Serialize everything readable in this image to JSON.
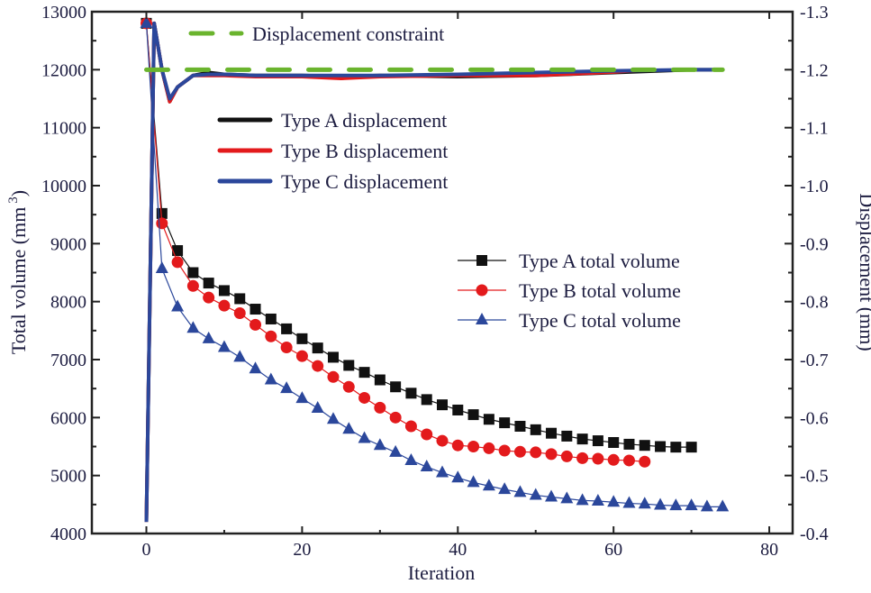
{
  "chart_data": {
    "type": "line",
    "xlabel": "Iteration",
    "ylabel_left": "Total volume (mm",
    "ylabel_left_sup": "3",
    "ylabel_left_close": ")",
    "ylabel_right": "Displacement (mm)",
    "xlim": [
      -7,
      83
    ],
    "ylim_left": [
      4000,
      13000
    ],
    "ylim_right": [
      -0.4,
      -1.3
    ],
    "xticks": [
      0,
      20,
      40,
      60,
      80
    ],
    "yticks_left": [
      4000,
      5000,
      6000,
      7000,
      8000,
      9000,
      10000,
      11000,
      12000,
      13000
    ],
    "yticks_right": [
      "-0.4",
      "-0.5",
      "-0.6",
      "-0.7",
      "-0.8",
      "-0.9",
      "-1.0",
      "-1.1",
      "-1.2",
      "-1.3"
    ],
    "grid": false,
    "constraint": {
      "name": "Displacement constraint",
      "value": -1.2,
      "color": "#6ab42d",
      "x": [
        0,
        74
      ]
    },
    "displacement_series": [
      {
        "name": "Type A displacement",
        "color": "#111111",
        "x": [
          0,
          1,
          2,
          3,
          4,
          6,
          8,
          10,
          14,
          20,
          25,
          30,
          40,
          50,
          60,
          70,
          74
        ],
        "y": [
          -0.42,
          -1.28,
          -1.2,
          -1.145,
          -1.17,
          -1.19,
          -1.195,
          -1.192,
          -1.19,
          -1.19,
          -1.188,
          -1.19,
          -1.188,
          -1.19,
          -1.195,
          -1.2,
          -1.2
        ]
      },
      {
        "name": "Type B displacement",
        "color": "#e31a1c",
        "x": [
          0,
          1,
          2,
          3,
          4,
          6,
          8,
          10,
          14,
          20,
          25,
          30,
          40,
          50,
          60,
          64
        ],
        "y": [
          -0.42,
          -1.28,
          -1.2,
          -1.145,
          -1.17,
          -1.19,
          -1.19,
          -1.19,
          -1.188,
          -1.188,
          -1.185,
          -1.188,
          -1.19,
          -1.19,
          -1.196,
          -1.2
        ]
      },
      {
        "name": "Type C displacement",
        "color": "#2b479b",
        "x": [
          0,
          1,
          2,
          3,
          4,
          6,
          8,
          10,
          14,
          20,
          30,
          40,
          50,
          60,
          70,
          74
        ],
        "y": [
          -0.42,
          -1.28,
          -1.2,
          -1.15,
          -1.17,
          -1.19,
          -1.192,
          -1.192,
          -1.19,
          -1.19,
          -1.19,
          -1.192,
          -1.195,
          -1.198,
          -1.2,
          -1.2
        ]
      }
    ],
    "volume_series": [
      {
        "name": "Type A total volume",
        "color": "#111111",
        "marker": "square",
        "x": [
          0,
          2,
          4,
          6,
          8,
          10,
          12,
          14,
          16,
          18,
          20,
          22,
          24,
          26,
          28,
          30,
          32,
          34,
          36,
          38,
          40,
          42,
          44,
          46,
          48,
          50,
          52,
          54,
          56,
          58,
          60,
          62,
          64,
          66,
          68,
          70
        ],
        "y": [
          12800,
          9520,
          8880,
          8500,
          8320,
          8190,
          8050,
          7870,
          7700,
          7530,
          7360,
          7200,
          7040,
          6900,
          6780,
          6650,
          6530,
          6420,
          6310,
          6220,
          6130,
          6050,
          5970,
          5910,
          5850,
          5790,
          5730,
          5680,
          5630,
          5600,
          5570,
          5540,
          5520,
          5500,
          5490,
          5490
        ]
      },
      {
        "name": "Type B total volume",
        "color": "#e31a1c",
        "marker": "circle",
        "x": [
          0,
          2,
          4,
          6,
          8,
          10,
          12,
          14,
          16,
          18,
          20,
          22,
          24,
          26,
          28,
          30,
          32,
          34,
          36,
          38,
          40,
          42,
          44,
          46,
          48,
          50,
          52,
          54,
          56,
          58,
          60,
          62,
          64
        ],
        "y": [
          12800,
          9350,
          8680,
          8270,
          8070,
          7930,
          7800,
          7600,
          7400,
          7210,
          7060,
          6890,
          6700,
          6530,
          6340,
          6170,
          6000,
          5850,
          5710,
          5600,
          5520,
          5500,
          5470,
          5430,
          5410,
          5400,
          5370,
          5330,
          5300,
          5290,
          5270,
          5260,
          5240
        ]
      },
      {
        "name": "Type C total volume",
        "color": "#2b479b",
        "marker": "triangle",
        "x": [
          0,
          2,
          4,
          6,
          8,
          10,
          12,
          14,
          16,
          18,
          20,
          22,
          24,
          26,
          28,
          30,
          32,
          34,
          36,
          38,
          40,
          42,
          44,
          46,
          48,
          50,
          52,
          54,
          56,
          58,
          60,
          62,
          64,
          66,
          68,
          70,
          72,
          74
        ],
        "y": [
          12800,
          8570,
          7910,
          7540,
          7360,
          7210,
          7040,
          6840,
          6650,
          6500,
          6330,
          6160,
          5970,
          5800,
          5640,
          5520,
          5400,
          5260,
          5150,
          5050,
          4960,
          4880,
          4820,
          4760,
          4710,
          4660,
          4630,
          4600,
          4570,
          4560,
          4540,
          4520,
          4510,
          4490,
          4480,
          4480,
          4460,
          4460
        ]
      }
    ]
  }
}
